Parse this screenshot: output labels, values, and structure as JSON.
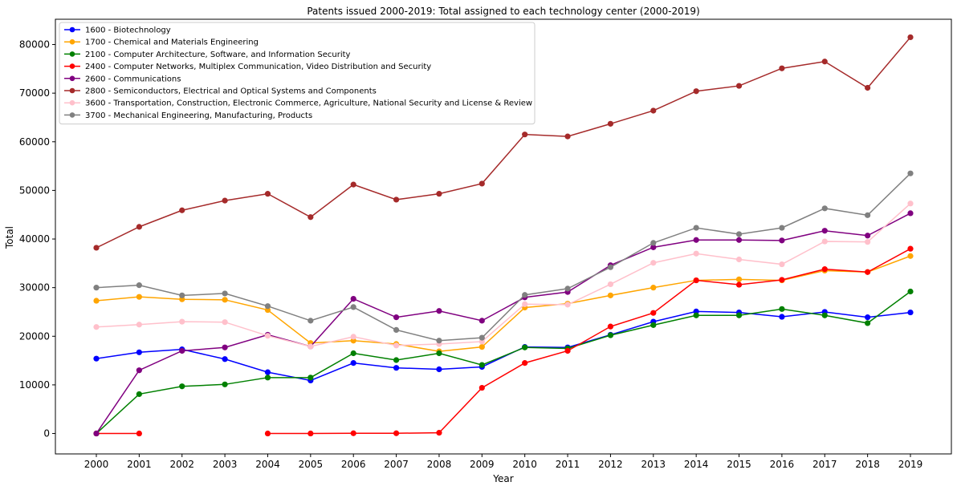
{
  "chart_data": {
    "type": "line",
    "title": "Patents issued 2000-2019: Total assigned to each technology center (2000-2019)",
    "xlabel": "Year",
    "ylabel": "Total",
    "x": [
      "2000",
      "2001",
      "2002",
      "2003",
      "2004",
      "2005",
      "2006",
      "2007",
      "2008",
      "2009",
      "2010",
      "2011",
      "2012",
      "2013",
      "2014",
      "2015",
      "2016",
      "2017",
      "2018",
      "2019"
    ],
    "yticks": [
      "0",
      "10000",
      "20000",
      "30000",
      "40000",
      "50000",
      "60000",
      "70000",
      "80000"
    ],
    "ylim": [
      -4200,
      85200
    ],
    "grid": false,
    "legend_position": "top-left",
    "series": [
      {
        "name": "1600 - Biotechnology",
        "color": "#0000ff",
        "values": [
          15400,
          16700,
          17300,
          15300,
          12600,
          10900,
          14500,
          13500,
          13200,
          13700,
          17800,
          17700,
          20300,
          23000,
          25100,
          24900,
          24000,
          25000,
          23900,
          24900
        ]
      },
      {
        "name": "1700 - Chemical and Materials Engineering",
        "color": "#ffa500",
        "values": [
          27300,
          28100,
          27600,
          27500,
          25400,
          18600,
          19100,
          18400,
          16900,
          17800,
          25900,
          26700,
          28400,
          30000,
          31500,
          31700,
          31500,
          33500,
          33200,
          36500
        ]
      },
      {
        "name": "2100 - Computer Architecture, Software, and Information Security",
        "color": "#008000",
        "values": [
          0,
          8100,
          9700,
          10100,
          11500,
          11500,
          16500,
          15100,
          16500,
          14100,
          17700,
          17500,
          20200,
          22300,
          24300,
          24300,
          25600,
          24300,
          22700,
          29200
        ]
      },
      {
        "name": "2400 - Computer Networks, Multiplex Communication, Video Distribution and Security",
        "color": "#ff0000",
        "values": [
          0,
          0,
          null,
          null,
          0,
          0,
          50,
          50,
          150,
          9400,
          14500,
          17000,
          22000,
          24800,
          31500,
          30600,
          31600,
          33800,
          33200,
          38000
        ]
      },
      {
        "name": "2600 - Communications",
        "color": "#800080",
        "values": [
          0,
          13000,
          17000,
          17700,
          20300,
          17900,
          27700,
          23900,
          25200,
          23200,
          28000,
          29100,
          34600,
          38300,
          39800,
          39800,
          39700,
          41700,
          40700,
          45300
        ]
      },
      {
        "name": "2800 - Semiconductors, Electrical and Optical Systems and Components",
        "color": "#a52a2a",
        "values": [
          38200,
          42500,
          45900,
          47900,
          49300,
          44500,
          51200,
          48100,
          49300,
          51400,
          61500,
          61100,
          63700,
          66400,
          70400,
          71500,
          75100,
          76500,
          71100,
          81500
        ]
      },
      {
        "name": "3600 - Transportation, Construction, Electronic Commerce, Agriculture, National Security and License & Review",
        "color": "#ffc0cb",
        "values": [
          21900,
          22400,
          23000,
          22900,
          20100,
          17900,
          19900,
          18100,
          18400,
          18900,
          26600,
          26500,
          30700,
          35100,
          37000,
          35800,
          34800,
          39500,
          39400,
          47300
        ]
      },
      {
        "name": "3700 - Mechanical Engineering, Manufacturing, Products",
        "color": "#808080",
        "values": [
          30000,
          30500,
          28400,
          28800,
          26200,
          23200,
          26000,
          21300,
          19100,
          19700,
          28500,
          29800,
          34200,
          39200,
          42300,
          41000,
          42300,
          46300,
          44900,
          53500
        ]
      }
    ]
  }
}
